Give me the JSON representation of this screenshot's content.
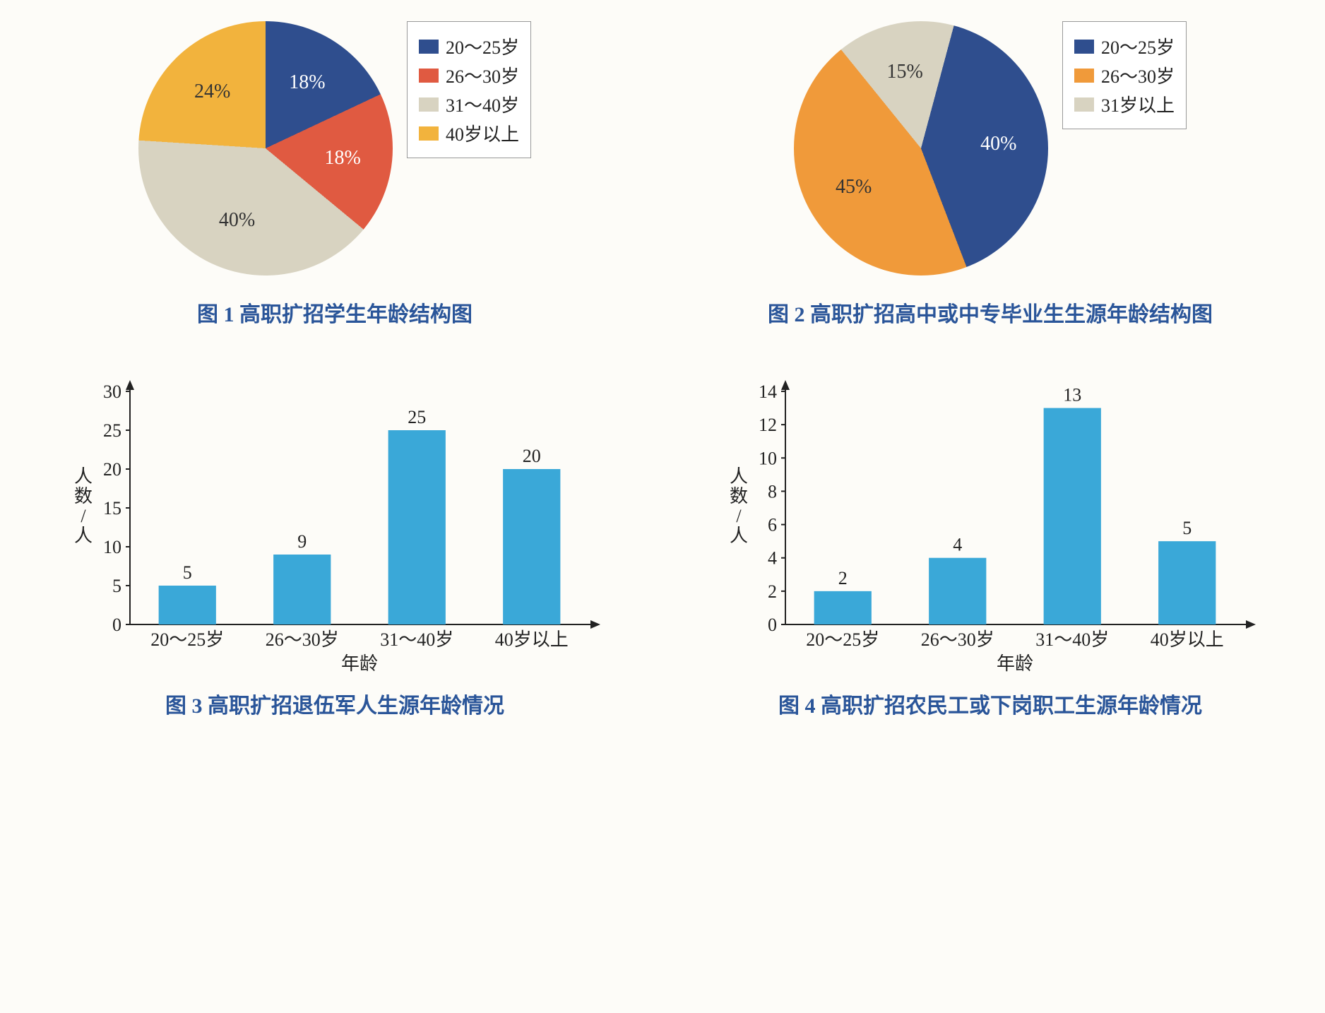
{
  "background_color": "#fdfcf8",
  "caption_color": "#2a5599",
  "caption_fontsize": 30,
  "axis_fontsize": 26,
  "chart1": {
    "type": "pie",
    "caption": "图 1  高职扩招学生年龄结构图",
    "slices": [
      {
        "label": "20～25岁",
        "value": 18,
        "color": "#2f4e8e",
        "display": "18%"
      },
      {
        "label": "26～30岁",
        "value": 18,
        "color": "#e05a41",
        "display": "18%"
      },
      {
        "label": "31～40岁",
        "value": 40,
        "color": "#d8d3c1",
        "display": "40%"
      },
      {
        "label": "40岁以上",
        "value": 24,
        "color": "#f2b33d",
        "display": "24%"
      }
    ],
    "legend_border": "#999999",
    "label_color_light": "#ffffff",
    "label_color_dark": "#333333"
  },
  "chart2": {
    "type": "pie",
    "caption": "图 2  高职扩招高中或中专毕业生生源年龄结构图",
    "slices": [
      {
        "label": "20～25岁",
        "value": 40,
        "color": "#2f4e8e",
        "display": "40%"
      },
      {
        "label": "26～30岁",
        "value": 45,
        "color": "#f09a3a",
        "display": "45%"
      },
      {
        "label": "31岁以上",
        "value": 15,
        "color": "#d8d3c1",
        "display": "15%"
      }
    ]
  },
  "chart3": {
    "type": "bar",
    "caption": "图 3  高职扩招退伍军人生源年龄情况",
    "categories": [
      "20～25岁",
      "26～30岁",
      "31～40岁",
      "40岁以上"
    ],
    "values": [
      5,
      9,
      25,
      20
    ],
    "bar_color": "#3aa8d8",
    "ylabel": "人数/人",
    "xlabel": "年龄",
    "ylim": [
      0,
      30
    ],
    "ytick_step": 5,
    "bar_width": 0.5,
    "axis_color": "#222222"
  },
  "chart4": {
    "type": "bar",
    "caption": "图 4  高职扩招农民工或下岗职工生源年龄情况",
    "categories": [
      "20～25岁",
      "26～30岁",
      "31～40岁",
      "40岁以上"
    ],
    "values": [
      2,
      4,
      13,
      5
    ],
    "bar_color": "#3aa8d8",
    "ylabel": "人数/人",
    "xlabel": "年龄",
    "ylim": [
      0,
      14
    ],
    "ytick_step": 2,
    "bar_width": 0.5,
    "axis_color": "#222222"
  }
}
